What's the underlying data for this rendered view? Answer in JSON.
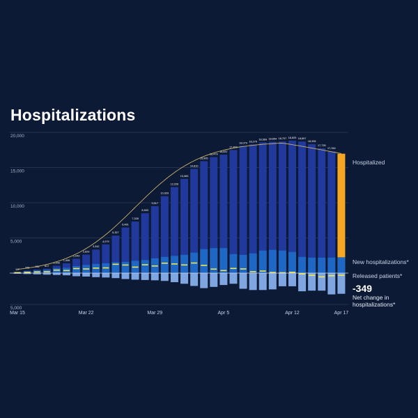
{
  "title": "Hospitalizations",
  "chart_data": {
    "type": "bar",
    "title": "Hospitalizations",
    "yticks": [
      "20,000",
      "15,000",
      "10,000",
      "5,000",
      "5,000"
    ],
    "ylim": [
      -5000,
      20000
    ],
    "grid": true,
    "xticks": [
      "Mar 15",
      "Mar 22",
      "Mar 29",
      "Apr 5",
      "Apr 12",
      "Apr 17"
    ],
    "categories": [
      "Mar 15",
      "Mar 16",
      "Mar 17",
      "Mar 18",
      "Mar 19",
      "Mar 20",
      "Mar 21",
      "Mar 22",
      "Mar 23",
      "Mar 24",
      "Mar 25",
      "Mar 26",
      "Mar 27",
      "Mar 28",
      "Mar 29",
      "Mar 30",
      "Mar 31",
      "Apr 1",
      "Apr 2",
      "Apr 3",
      "Apr 4",
      "Apr 5",
      "Apr 6",
      "Apr 7",
      "Apr 8",
      "Apr 9",
      "Apr 10",
      "Apr 11",
      "Apr 12",
      "Apr 13",
      "Apr 14",
      "Apr 15",
      "Apr 16",
      "Apr 17"
    ],
    "hospitalized_labels": [
      "117",
      "326",
      "496",
      "617",
      "1,042",
      "1,406",
      "2,043",
      "2,629",
      "3,342",
      "4,079",
      "5,327",
      "6,481",
      "7,328",
      "8,503",
      "9,517",
      "10,929",
      "12,226",
      "13,383",
      "14,810",
      "15,905",
      "16,479",
      "16,837",
      "17,493",
      "18,079",
      "18,279",
      "18,569",
      "18,654",
      "18,707",
      "18,825",
      "18,697",
      "18,335",
      "17,735",
      "17,316",
      ""
    ],
    "series": [
      {
        "name": "Hospitalized",
        "values": [
          117,
          326,
          496,
          617,
          1042,
          1406,
          2043,
          2629,
          3342,
          4079,
          5327,
          6481,
          7328,
          8503,
          9517,
          10929,
          12226,
          13383,
          14810,
          15905,
          16479,
          16837,
          17493,
          18079,
          18279,
          18569,
          18654,
          18707,
          18825,
          18697,
          18335,
          17735,
          17316,
          16967
        ]
      },
      {
        "name": "New hospitalizations*",
        "values": [
          150,
          250,
          350,
          450,
          700,
          750,
          1000,
          1150,
          1300,
          1400,
          1550,
          1600,
          1750,
          1850,
          2100,
          2300,
          2450,
          2600,
          2900,
          3400,
          3550,
          3550,
          2700,
          2600,
          2800,
          3200,
          3300,
          3200,
          3000,
          2300,
          2200,
          2200,
          2200,
          2250
        ]
      },
      {
        "name": "Released patients*",
        "values": [
          -100,
          -150,
          -200,
          -250,
          -300,
          -350,
          -500,
          -550,
          -650,
          -700,
          -800,
          -950,
          -1050,
          -1100,
          -1150,
          -1250,
          -1450,
          -1700,
          -2050,
          -2400,
          -2200,
          -1900,
          -1700,
          -2500,
          -2700,
          -2700,
          -2600,
          -2100,
          -2100,
          -2900,
          -2800,
          -2800,
          -3400,
          -3300
        ]
      },
      {
        "name": "Net change in hospitalizations*",
        "values": [
          60,
          110,
          170,
          190,
          420,
          360,
          640,
          590,
          710,
          740,
          1250,
          1150,
          850,
          1180,
          1010,
          1410,
          1300,
          1160,
          1430,
          1100,
          570,
          360,
          660,
          590,
          200,
          290,
          90,
          50,
          120,
          -130,
          -360,
          -600,
          -420,
          -349
        ]
      }
    ],
    "highlight": {
      "value": "-349",
      "label": "Net change in hospitalizations*"
    },
    "legend_labels": [
      "Hospitalized",
      "New hospitalizations*",
      "Released patients*"
    ],
    "colors": {
      "hospitalized": "#21389c",
      "new": "#1e67c4",
      "released": "#7fa6e0",
      "highlight": "#f5a623",
      "net_marker": "#f3e94f",
      "trend": "#c9b26a",
      "zero_line": "#cfd8ea"
    }
  }
}
